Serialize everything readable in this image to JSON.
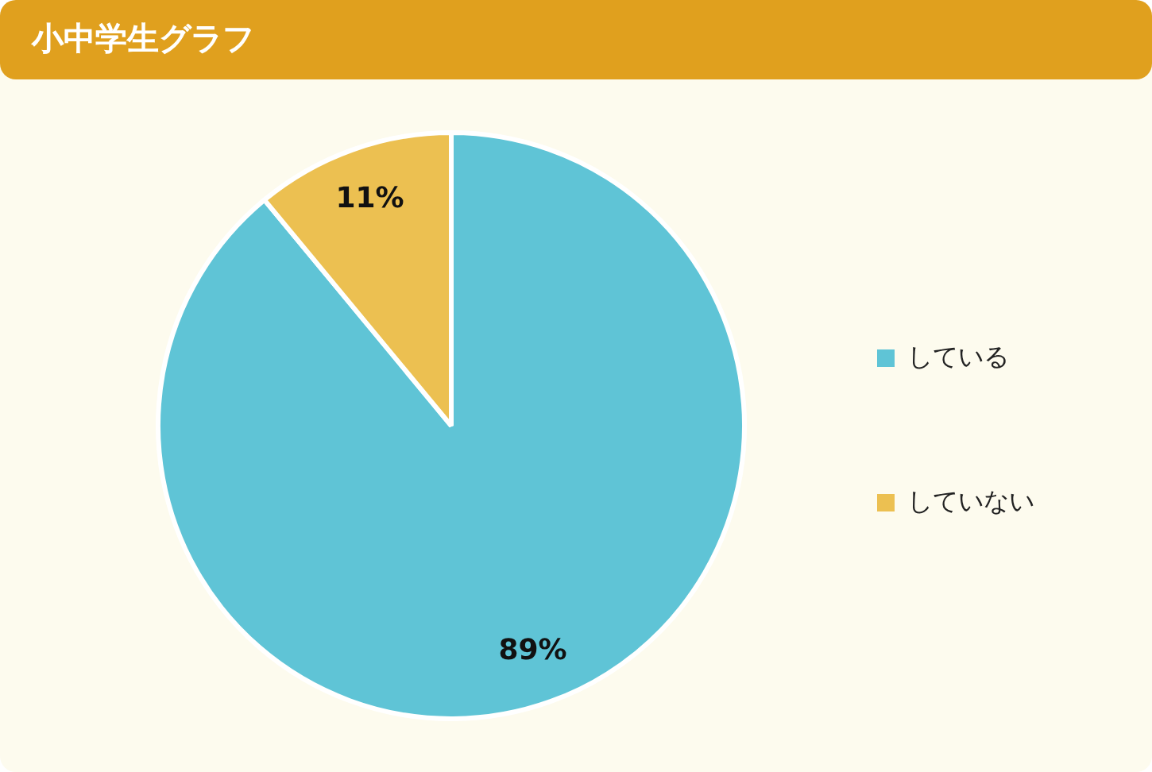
{
  "chart_data": {
    "type": "pie",
    "title": "小中学生グラフ",
    "categories": [
      "している",
      "していない"
    ],
    "values": [
      89,
      11
    ],
    "colors": [
      "#5fc4d6",
      "#ecc051"
    ],
    "value_labels": [
      "89%",
      "11%"
    ],
    "legend": "right"
  }
}
